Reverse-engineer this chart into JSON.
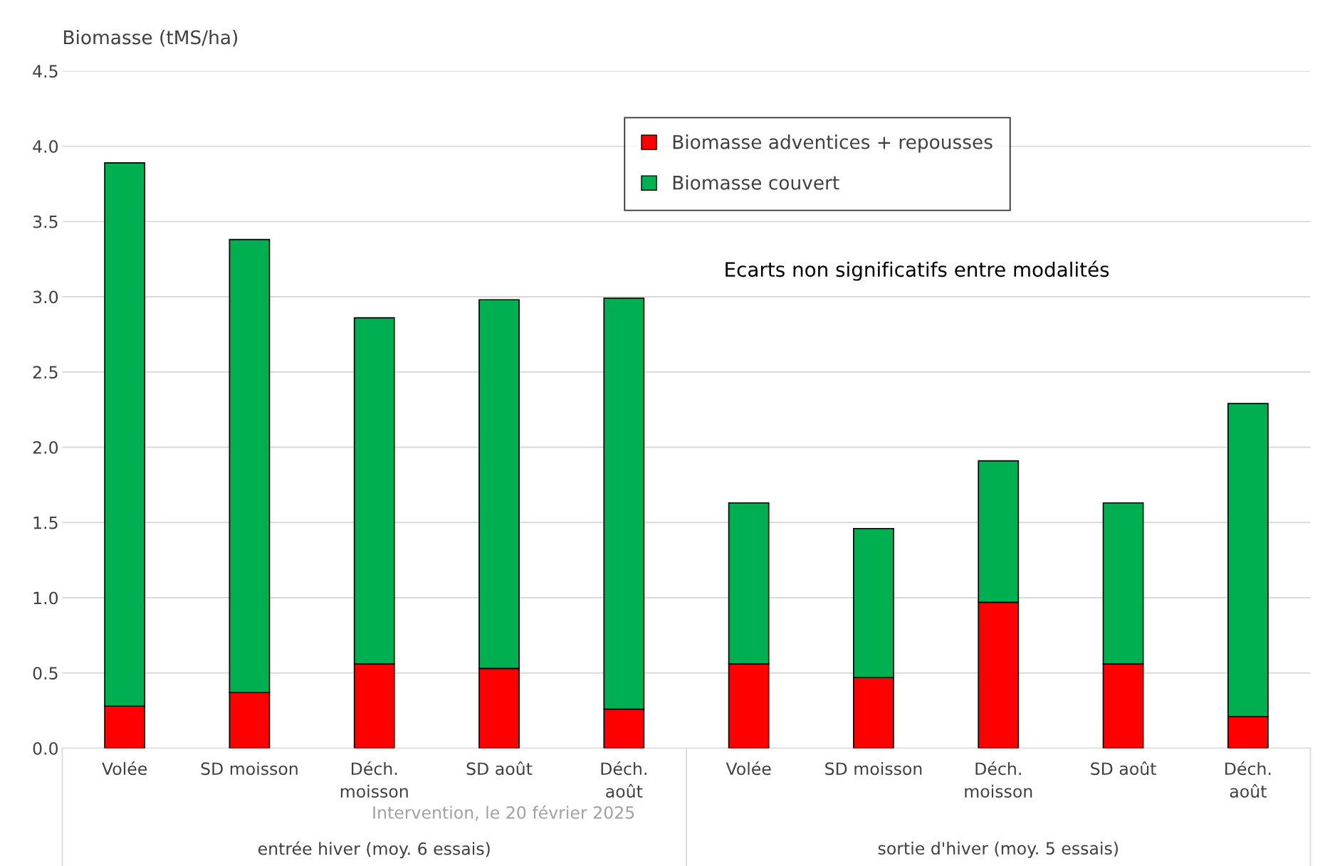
{
  "chart_data": {
    "type": "bar",
    "stacked": true,
    "ylabel": "Biomasse (tMS/ha)",
    "categories": [
      "Volée",
      "SD moisson",
      "Déch. moisson",
      "SD août",
      "Déch. août",
      "Volée",
      "SD moisson",
      "Déch. moisson",
      "SD août",
      "Déch. août"
    ],
    "series": [
      {
        "name": "Biomasse adventices + repousses",
        "color": "#ff0000",
        "values": [
          0.28,
          0.37,
          0.56,
          0.53,
          0.26,
          0.56,
          0.47,
          0.97,
          0.56,
          0.21
        ]
      },
      {
        "name": "Biomasse couvert",
        "color": "#00b050",
        "values": [
          3.61,
          3.01,
          2.3,
          2.45,
          2.73,
          1.07,
          0.99,
          0.94,
          1.07,
          2.08
        ]
      }
    ],
    "ylim": [
      0,
      4.5
    ],
    "yticks": [
      {
        "value": 0,
        "label": "0.0"
      },
      {
        "value": 0.5,
        "label": "0.5"
      },
      {
        "value": 1,
        "label": "1.0"
      },
      {
        "value": 1.5,
        "label": "1.5"
      },
      {
        "value": 2,
        "label": "2.0"
      },
      {
        "value": 2.5,
        "label": "2.5"
      },
      {
        "value": 3,
        "label": "3.0"
      },
      {
        "value": 3.5,
        "label": "3.5"
      },
      {
        "value": 4,
        "label": "4.0"
      },
      {
        "value": 4.5,
        "label": "4.5"
      }
    ],
    "grid": "y",
    "legend": "top right",
    "annotations": [
      "entrée hiver (moy. 6 essais)",
      "sortie d'hiver (moy. 5 essais)",
      "Ecarts non significatifs entre modalités",
      "Intervention, le 20 février 2025"
    ]
  }
}
